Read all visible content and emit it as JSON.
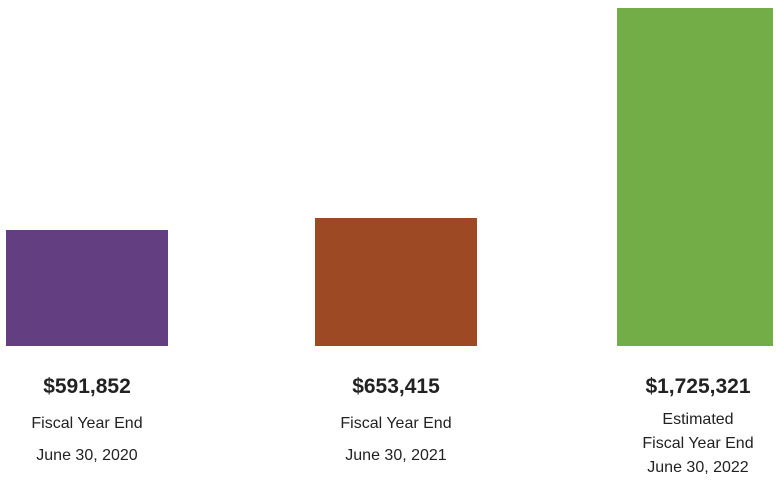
{
  "chart_data": {
    "type": "bar",
    "categories": [
      "Fiscal Year End\nJune 30, 2020",
      "Fiscal Year End\nJune 30, 2021",
      "Estimated\nFiscal Year End\nJune 30, 2022"
    ],
    "values": [
      591852,
      653415,
      1725321
    ],
    "value_labels": [
      "$591,852",
      "$653,415",
      "$1,725,321"
    ],
    "colors": [
      "#633f82",
      "#9d4a24",
      "#72ad48"
    ],
    "ylim": [
      0,
      1750000
    ]
  }
}
